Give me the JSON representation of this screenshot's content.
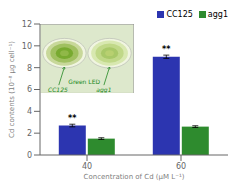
{
  "chart_data": {
    "type": "bar",
    "categories": [
      "40",
      "60"
    ],
    "series": [
      {
        "name": "CC125",
        "color": "#2c35b0",
        "values": [
          2.7,
          9.0
        ],
        "errors": [
          0.12,
          0.15
        ],
        "significance_labels": [
          "**",
          "**"
        ]
      },
      {
        "name": "agg1",
        "color": "#2e8b2e",
        "values": [
          1.5,
          2.6
        ],
        "errors": [
          0.08,
          0.08
        ]
      }
    ],
    "xlabel": "Concentration of Cd (μM L⁻¹)",
    "ylabel": "Cd contents (10⁻⁸ μg cell⁻¹)",
    "ylim": [
      0,
      12
    ],
    "yticks": [
      0,
      2,
      4,
      6,
      8,
      10,
      12
    ],
    "grid": false,
    "legend": "upper right",
    "annotations": [
      {
        "text": "CC125",
        "color": "#228822"
      },
      {
        "text": "agg1",
        "color": "#228822"
      },
      {
        "text": "Green LED",
        "color": "#228822"
      }
    ]
  }
}
